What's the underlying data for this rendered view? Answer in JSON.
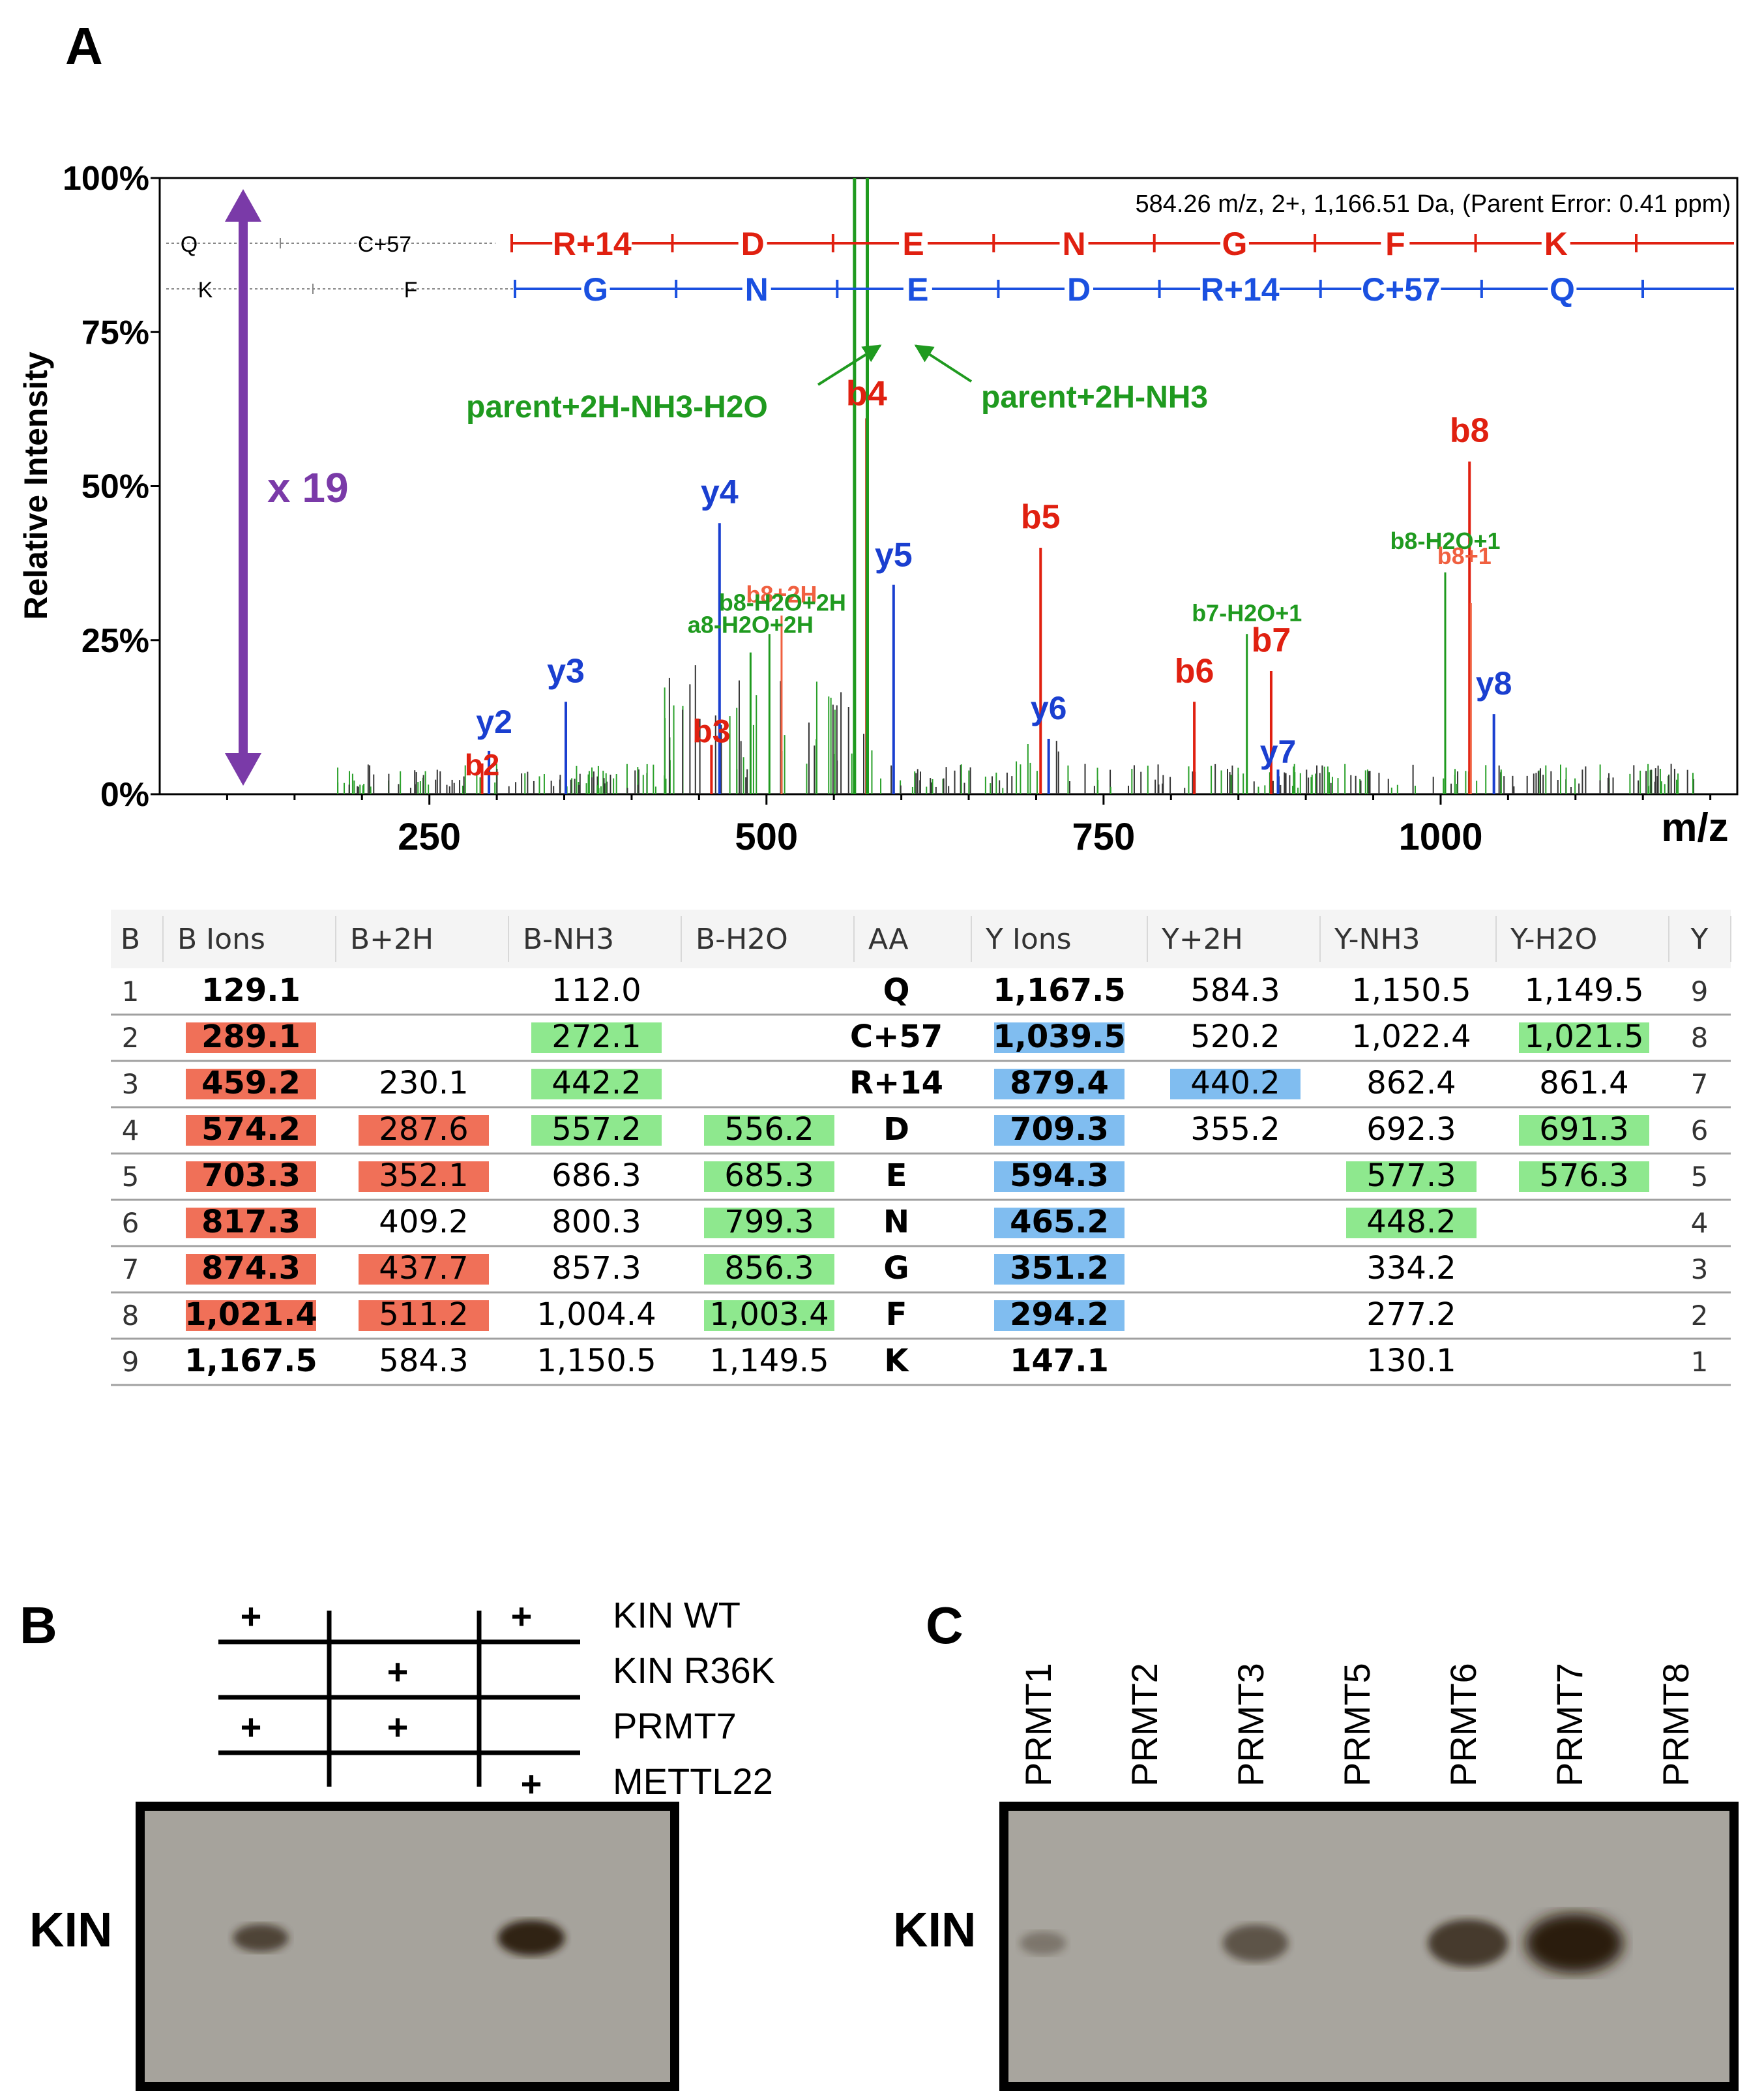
{
  "panel_a": {
    "label": "A",
    "header_info": "584.26 m/z, 2+, 1,166.51 Da,  (Parent Error: 0.41 ppm)",
    "scale_note": "x 19",
    "seq_b_ends": [
      "Q",
      "C+57"
    ],
    "seq_b": [
      "R+14",
      "D",
      "E",
      "N",
      "G",
      "F",
      "K"
    ],
    "seq_y_ends": [
      "K",
      "F"
    ],
    "seq_y": [
      "G",
      "N",
      "E",
      "D",
      "R+14",
      "C+57",
      "Q"
    ],
    "arrow_left_label": "parent+2H-NH3-H2O",
    "arrow_right_label": "parent+2H-NH3",
    "colors": {
      "b_ion": "#e02010",
      "y_ion": "#1a3fd0",
      "neutral_loss": "#1f9a1f",
      "seq_b": "#e02010",
      "seq_y": "#1a50e0",
      "parent": "#1f9a1f",
      "arrow": "#7a3aa8"
    }
  },
  "chart_data": {
    "type": "bar",
    "title": "584.26 m/z, 2+, 1,166.51 Da,  (Parent Error: 0.41 ppm)",
    "xlabel": "m/z",
    "ylabel": "Relative Intensity",
    "xlim": [
      50,
      1220
    ],
    "ylim": [
      0,
      100
    ],
    "x_ticks": [
      250,
      500,
      750,
      1000
    ],
    "y_ticks": [
      "0%",
      "25%",
      "50%",
      "75%",
      "100%"
    ],
    "y_tick_values": [
      0,
      25,
      50,
      75,
      100
    ],
    "peaks": [
      {
        "label": "b2",
        "mz": 289.1,
        "intensity": 5,
        "ion": "b"
      },
      {
        "label": "y2",
        "mz": 294.2,
        "intensity": 7,
        "ion": "y"
      },
      {
        "label": "y3",
        "mz": 351.2,
        "intensity": 15,
        "ion": "y"
      },
      {
        "label": "b3",
        "mz": 459.2,
        "intensity": 8,
        "ion": "b"
      },
      {
        "label": "y4",
        "mz": 465.2,
        "intensity": 44,
        "ion": "y"
      },
      {
        "label": "b4",
        "mz": 574.2,
        "intensity": 61,
        "ion": "b"
      },
      {
        "label": "y5",
        "mz": 594.3,
        "intensity": 34,
        "ion": "y"
      },
      {
        "label": "b5",
        "mz": 703.3,
        "intensity": 40,
        "ion": "b"
      },
      {
        "label": "y6",
        "mz": 709.3,
        "intensity": 9,
        "ion": "y"
      },
      {
        "label": "b6",
        "mz": 817.3,
        "intensity": 15,
        "ion": "b"
      },
      {
        "label": "b7",
        "mz": 874.3,
        "intensity": 20,
        "ion": "b"
      },
      {
        "label": "y7",
        "mz": 879.4,
        "intensity": 4,
        "ion": "y"
      },
      {
        "label": "b8",
        "mz": 1021.4,
        "intensity": 54,
        "ion": "b"
      },
      {
        "label": "y8",
        "mz": 1039.5,
        "intensity": 13,
        "ion": "y"
      },
      {
        "label": "b8+2H",
        "mz": 511.2,
        "intensity": 29,
        "ion": "b2h"
      },
      {
        "label": "b8-H2O+2H",
        "mz": 502.2,
        "intensity": 26,
        "ion": "n"
      },
      {
        "label": "a8-H2O+2H",
        "mz": 488.2,
        "intensity": 23,
        "ion": "n"
      },
      {
        "label": "b7-H2O+1",
        "mz": 856.3,
        "intensity": 26,
        "ion": "n"
      },
      {
        "label": "b8-H2O+1",
        "mz": 1003.4,
        "intensity": 36,
        "ion": "n"
      },
      {
        "label": "b8+1",
        "mz": 1022.4,
        "intensity": 31,
        "ion": "b2h"
      },
      {
        "label": "parent+2H-NH3-H2O",
        "mz": 565.3,
        "intensity": 100,
        "ion": "p"
      },
      {
        "label": "parent+2H-NH3",
        "mz": 574.8,
        "intensity": 100,
        "ion": "p"
      }
    ]
  },
  "ion_table": {
    "headers": [
      "B",
      "B Ions",
      "B+2H",
      "B-NH3",
      "B-H2O",
      "AA",
      "Y Ions",
      "Y+2H",
      "Y-NH3",
      "Y-H2O",
      "Y"
    ],
    "rows": [
      [
        "1",
        "129.1",
        "",
        "112.0",
        "",
        "Q",
        "1,167.5",
        "584.3",
        "1,150.5",
        "1,149.5",
        "9"
      ],
      [
        "2",
        "289.1",
        "",
        "272.1",
        "",
        "C+57",
        "1,039.5",
        "520.2",
        "1,022.4",
        "1,021.5",
        "8"
      ],
      [
        "3",
        "459.2",
        "230.1",
        "442.2",
        "",
        "R+14",
        "879.4",
        "440.2",
        "862.4",
        "861.4",
        "7"
      ],
      [
        "4",
        "574.2",
        "287.6",
        "557.2",
        "556.2",
        "D",
        "709.3",
        "355.2",
        "692.3",
        "691.3",
        "6"
      ],
      [
        "5",
        "703.3",
        "352.1",
        "686.3",
        "685.3",
        "E",
        "594.3",
        "",
        "577.3",
        "576.3",
        "5"
      ],
      [
        "6",
        "817.3",
        "409.2",
        "800.3",
        "799.3",
        "N",
        "465.2",
        "",
        "448.2",
        "",
        "4"
      ],
      [
        "7",
        "874.3",
        "437.7",
        "857.3",
        "856.3",
        "G",
        "351.2",
        "",
        "334.2",
        "",
        "3"
      ],
      [
        "8",
        "1,021.4",
        "511.2",
        "1,004.4",
        "1,003.4",
        "F",
        "294.2",
        "",
        "277.2",
        "",
        "2"
      ],
      [
        "9",
        "1,167.5",
        "584.3",
        "1,150.5",
        "1,149.5",
        "K",
        "147.1",
        "",
        "130.1",
        "",
        "1"
      ]
    ],
    "highlight": [
      "...........",
      ".r.g..b..g.",
      ".r.g..bb...",
      ".rrgg.b..g.",
      ".rr.g.b.gg.",
      ".r..g.b.g..",
      ".rr.g.b....",
      ".rr.g.b....",
      "..........."
    ],
    "colors": {
      "r": "#f07058",
      "g": "#8ee88e",
      "b": "#80bdf0"
    }
  },
  "panel_b": {
    "label": "B",
    "rows": [
      {
        "label": "KIN WT",
        "marks": [
          "+",
          "",
          "+"
        ]
      },
      {
        "label": "KIN R36K",
        "marks": [
          "",
          "+",
          ""
        ]
      },
      {
        "label": "PRMT7",
        "marks": [
          "+",
          "+",
          ""
        ]
      },
      {
        "label": "METTL22",
        "marks": [
          "",
          "",
          "+"
        ]
      }
    ],
    "blot_label": "KIN",
    "band_intensity": [
      0.5,
      0.0,
      0.85
    ]
  },
  "panel_c": {
    "label": "C",
    "lanes": [
      "PRMT1",
      "PRMT2",
      "PRMT3",
      "PRMT5",
      "PRMT6",
      "PRMT7",
      "PRMT8"
    ],
    "blot_label": "KIN",
    "band_intensity": [
      0.12,
      0.0,
      0.45,
      0.0,
      0.7,
      1.0,
      0.0
    ]
  }
}
